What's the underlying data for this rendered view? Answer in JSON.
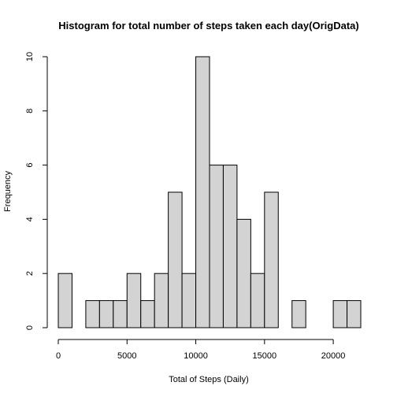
{
  "chart_data": {
    "type": "bar",
    "title": "Histogram for total number of steps taken each day(OrigData)",
    "xlabel": "Total of Steps (Daily)",
    "ylabel": "Frequency",
    "bin_width": 1000,
    "bins": [
      {
        "start": 0,
        "end": 1000,
        "count": 2
      },
      {
        "start": 1000,
        "end": 2000,
        "count": 0
      },
      {
        "start": 2000,
        "end": 3000,
        "count": 1
      },
      {
        "start": 3000,
        "end": 4000,
        "count": 1
      },
      {
        "start": 4000,
        "end": 5000,
        "count": 1
      },
      {
        "start": 5000,
        "end": 6000,
        "count": 2
      },
      {
        "start": 6000,
        "end": 7000,
        "count": 1
      },
      {
        "start": 7000,
        "end": 8000,
        "count": 2
      },
      {
        "start": 8000,
        "end": 9000,
        "count": 5
      },
      {
        "start": 9000,
        "end": 10000,
        "count": 2
      },
      {
        "start": 10000,
        "end": 11000,
        "count": 10
      },
      {
        "start": 11000,
        "end": 12000,
        "count": 6
      },
      {
        "start": 12000,
        "end": 13000,
        "count": 6
      },
      {
        "start": 13000,
        "end": 14000,
        "count": 4
      },
      {
        "start": 14000,
        "end": 15000,
        "count": 2
      },
      {
        "start": 15000,
        "end": 16000,
        "count": 5
      },
      {
        "start": 16000,
        "end": 17000,
        "count": 0
      },
      {
        "start": 17000,
        "end": 18000,
        "count": 1
      },
      {
        "start": 18000,
        "end": 19000,
        "count": 0
      },
      {
        "start": 19000,
        "end": 20000,
        "count": 0
      },
      {
        "start": 20000,
        "end": 21000,
        "count": 1
      },
      {
        "start": 21000,
        "end": 22000,
        "count": 1
      }
    ],
    "xlim": [
      0,
      22000
    ],
    "ylim": [
      0,
      10
    ],
    "x_ticks": [
      0,
      5000,
      10000,
      15000,
      20000
    ],
    "x_tick_labels": [
      "0",
      "5000",
      "10000",
      "15000",
      "20000"
    ],
    "y_ticks": [
      0,
      2,
      4,
      6,
      8,
      10
    ],
    "y_tick_labels": [
      "0",
      "2",
      "4",
      "6",
      "8",
      "10"
    ],
    "bar_color": "#d3d3d3",
    "bar_border_color": "#000000",
    "grid": false,
    "legend": "none"
  }
}
